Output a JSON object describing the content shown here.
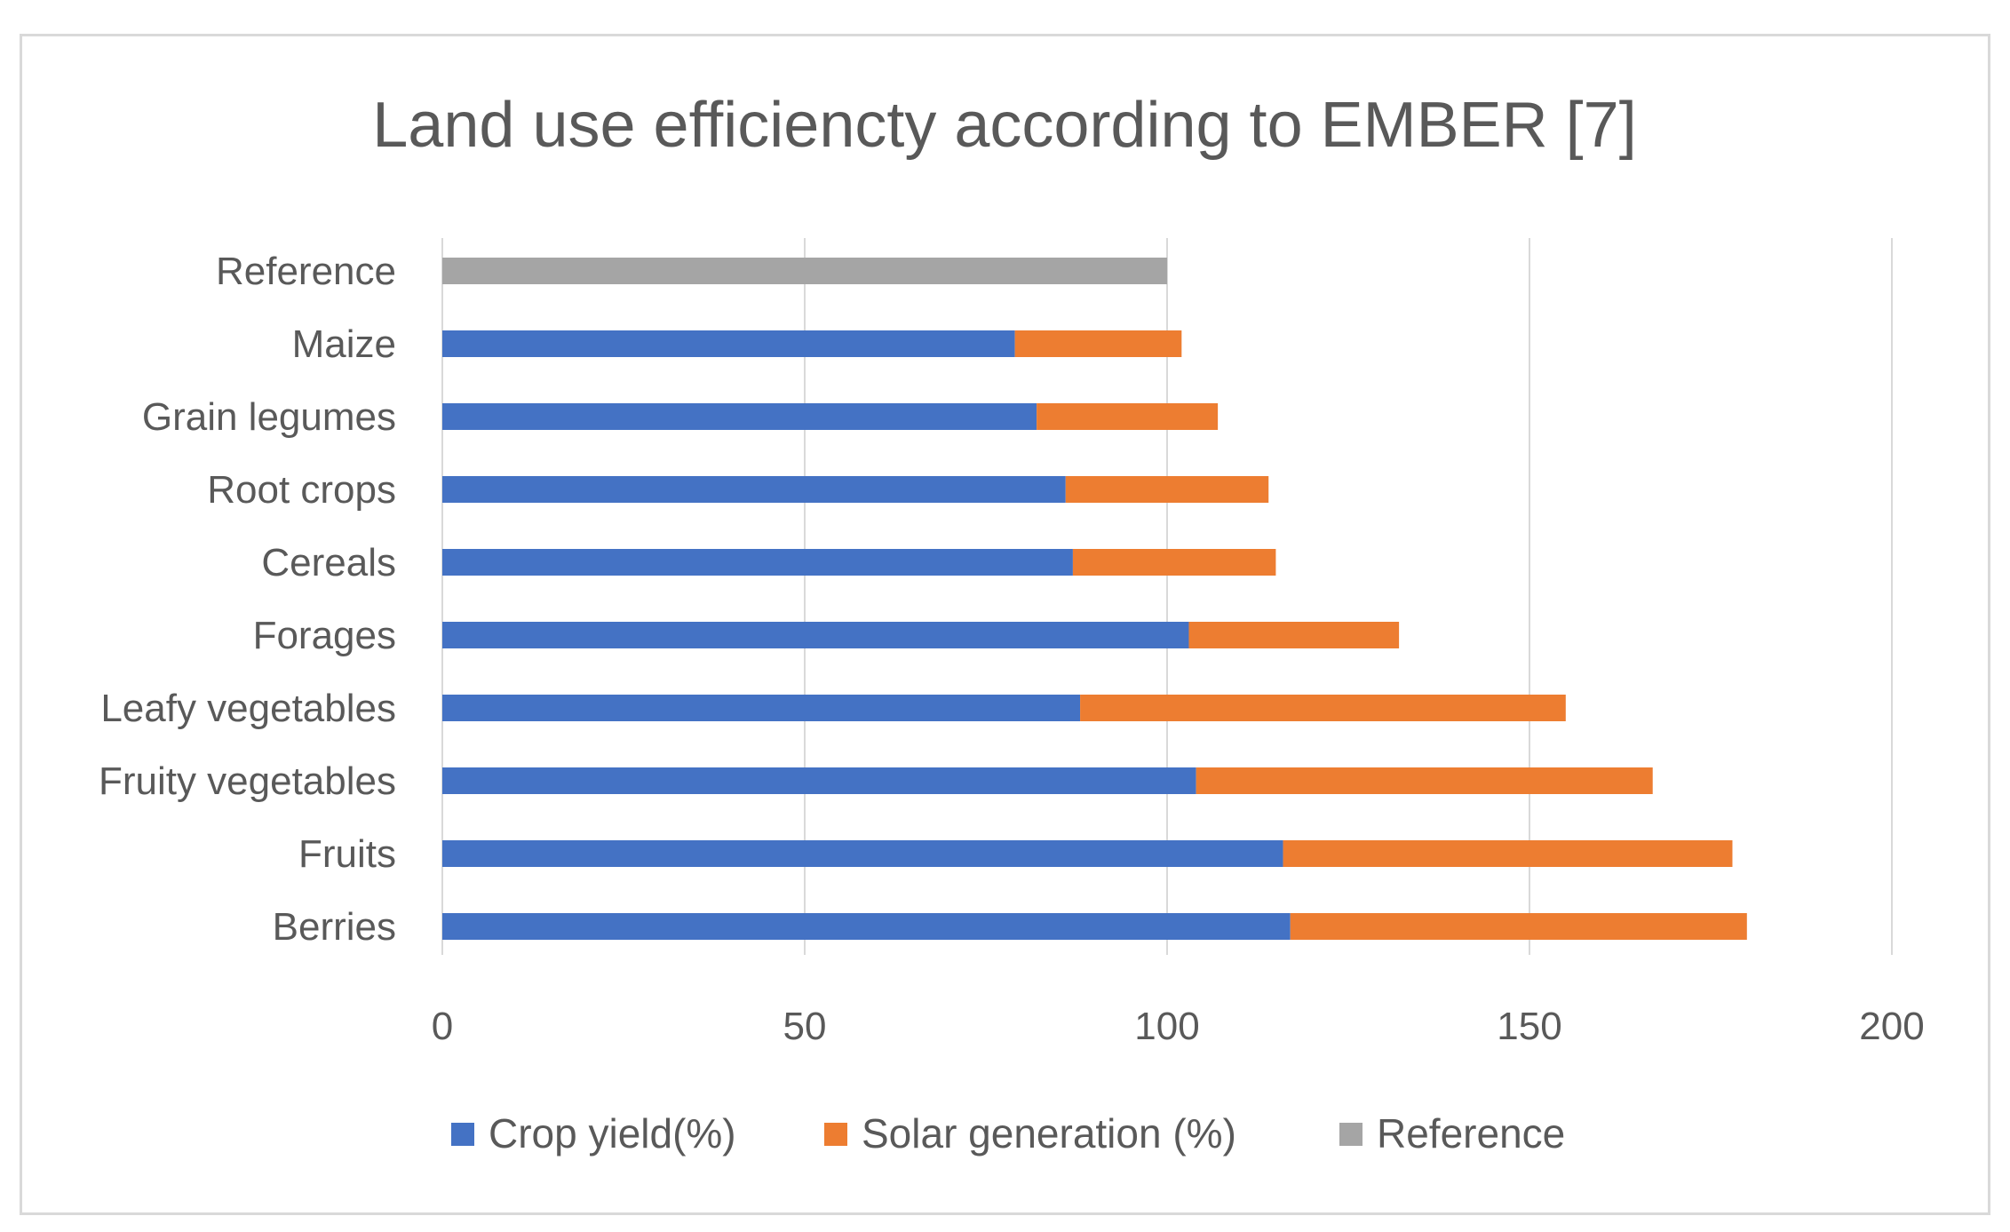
{
  "chart_data": {
    "type": "bar",
    "orientation": "horizontal",
    "stacked": true,
    "title": "Land use efficiencty according to EMBER [7]",
    "xlabel": "",
    "ylabel": "",
    "xlim": [
      0,
      200
    ],
    "ticks": [
      0,
      50,
      100,
      150,
      200
    ],
    "tick_labels": [
      "0",
      "50",
      "100",
      "150",
      "200"
    ],
    "grid": true,
    "legend_position": "bottom",
    "categories": [
      "Reference",
      "Maize",
      "Grain legumes",
      "Root crops",
      "Cereals",
      "Forages",
      "Leafy vegetables",
      "Fruity vegetables",
      "Fruits",
      "Berries"
    ],
    "series": [
      {
        "name": "Crop yield(%)",
        "color": "#4472C4",
        "values": [
          0,
          79,
          82,
          86,
          87,
          103,
          88,
          104,
          116,
          117
        ]
      },
      {
        "name": "Solar generation (%)",
        "color": "#ED7D31",
        "values": [
          0,
          23,
          25,
          28,
          28,
          29,
          67,
          63,
          62,
          63
        ]
      },
      {
        "name": "Reference",
        "color": "#A5A5A5",
        "values": [
          100,
          0,
          0,
          0,
          0,
          0,
          0,
          0,
          0,
          0
        ]
      }
    ]
  }
}
